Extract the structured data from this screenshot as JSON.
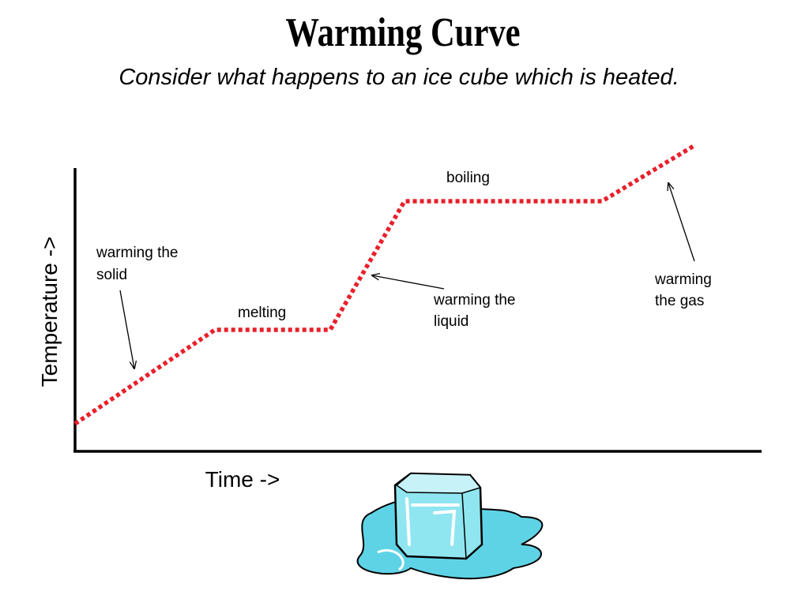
{
  "header": {
    "title": "Warming Curve",
    "subtitle": "Consider what happens to an ice cube which is heated."
  },
  "axes": {
    "y_label": "Temperature ->",
    "x_label": "Time ->"
  },
  "annotations": {
    "warming_solid": [
      "warming the",
      "solid"
    ],
    "melting": [
      "melting"
    ],
    "warming_liquid": [
      "warming the",
      "liquid"
    ],
    "boiling": [
      "boiling"
    ],
    "warming_gas": [
      "warming",
      "the gas"
    ]
  }
}
